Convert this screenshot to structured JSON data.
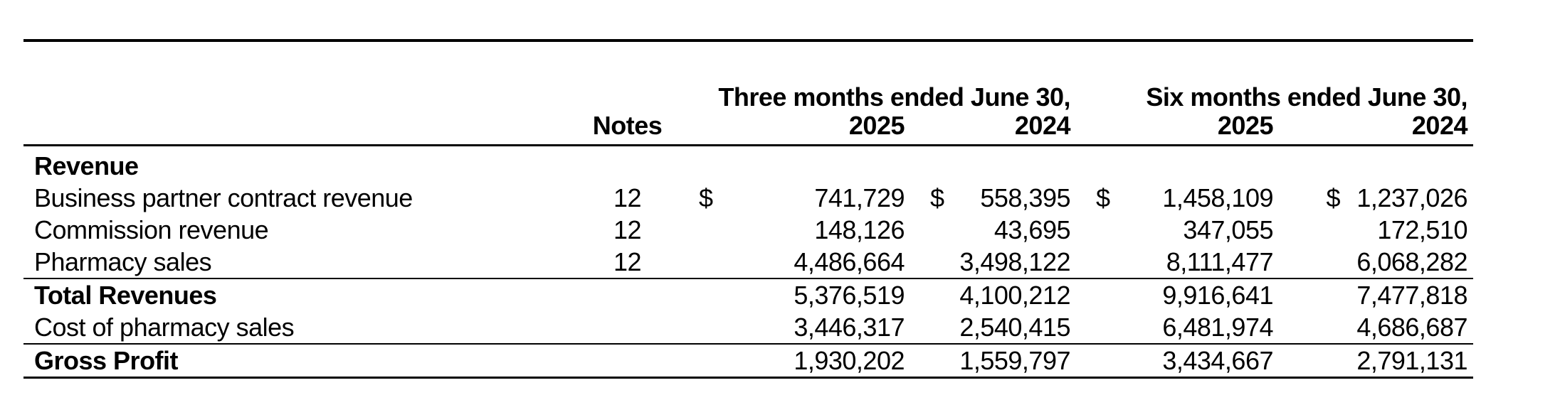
{
  "table": {
    "currency_symbol": "$",
    "headers": {
      "notes": "Notes",
      "groups": [
        {
          "label": "Three months ended June 30,",
          "years": [
            "2025",
            "2024"
          ]
        },
        {
          "label": "Six months ended June 30,",
          "years": [
            "2025",
            "2024"
          ]
        }
      ]
    },
    "rows": [
      {
        "label": "Revenue",
        "notes": "",
        "values": [
          "",
          "",
          "",
          ""
        ]
      },
      {
        "label": "Business partner contract revenue",
        "notes": "12",
        "values": [
          "741,729",
          "558,395",
          "1,458,109",
          "1,237,026"
        ]
      },
      {
        "label": "Commission revenue",
        "notes": "12",
        "values": [
          "148,126",
          "43,695",
          "347,055",
          "172,510"
        ]
      },
      {
        "label": "Pharmacy sales",
        "notes": "12",
        "values": [
          "4,486,664",
          "3,498,122",
          "8,111,477",
          "6,068,282"
        ]
      },
      {
        "label": "Total Revenues",
        "notes": "",
        "values": [
          "5,376,519",
          "4,100,212",
          "9,916,641",
          "7,477,818"
        ]
      },
      {
        "label": "Cost of pharmacy sales",
        "notes": "",
        "values": [
          "3,446,317",
          "2,540,415",
          "6,481,974",
          "4,686,687"
        ]
      },
      {
        "label": "Gross Profit",
        "notes": "",
        "values": [
          "1,930,202",
          "1,559,797",
          "3,434,667",
          "2,791,131"
        ]
      }
    ]
  }
}
